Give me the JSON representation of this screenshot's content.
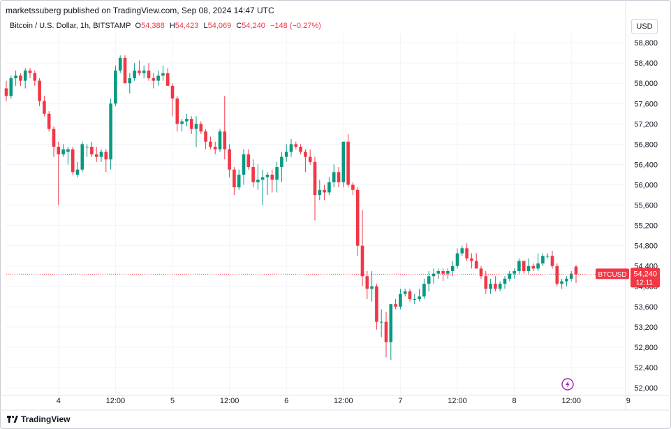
{
  "header": {
    "published": "marketssuberg published on TradingView.com, Sep 08, 2024 14:47 UTC"
  },
  "legend": {
    "symbol": "Bitcoin / U.S. Dollar, 1h, BITSTAMP",
    "o_label": "O",
    "o_value": "54,388",
    "h_label": "H",
    "h_value": "54,423",
    "l_label": "L",
    "l_value": "54,069",
    "c_label": "C",
    "c_value": "54,240",
    "change": "−148 (−0.27%)"
  },
  "currency_button": "USD",
  "price_tag": {
    "symbol": "BTCUSD",
    "price": "54,240",
    "countdown": "12:11"
  },
  "footer": {
    "brand": "TradingView"
  },
  "colors": {
    "up": "#089981",
    "down": "#f23645",
    "grid": "#f0f3fa",
    "text": "#131722",
    "alert": "#9c27b0"
  },
  "icons": {
    "alert": "lightning-icon",
    "logo": "tradingview-logo-icon"
  },
  "chart_data": {
    "type": "candlestick",
    "interval": "1h",
    "last_price": 54240,
    "y_range": [
      51850,
      58980
    ],
    "y_ticks": [
      "58,800",
      "58,400",
      "58,000",
      "57,600",
      "57,200",
      "56,800",
      "56,400",
      "56,000",
      "55,600",
      "55,200",
      "54,800",
      "54,400",
      "54,000",
      "53,600",
      "53,200",
      "52,800",
      "52,400",
      "52,000"
    ],
    "y_tick_values": [
      58800,
      58400,
      58000,
      57600,
      57200,
      56800,
      56400,
      56000,
      55600,
      55200,
      54800,
      54400,
      54000,
      53600,
      53200,
      52800,
      52400,
      52000
    ],
    "x_labels": [
      "4",
      "12:00",
      "5",
      "12:00",
      "6",
      "12:00",
      "7",
      "12:00",
      "8",
      "12:00",
      "9"
    ],
    "x_label_index": [
      11,
      23,
      35,
      47,
      59,
      71,
      83,
      95,
      107,
      119,
      131
    ],
    "first_index": 0,
    "candles": [
      [
        57900,
        58050,
        57650,
        57750
      ],
      [
        57750,
        58150,
        57700,
        58100
      ],
      [
        58100,
        58250,
        57950,
        58150
      ],
      [
        58150,
        58200,
        57950,
        58050
      ],
      [
        58050,
        58300,
        57900,
        58250
      ],
      [
        58250,
        58300,
        58100,
        58200
      ],
      [
        58200,
        58250,
        57950,
        58050
      ],
      [
        58050,
        58100,
        57550,
        57650
      ],
      [
        57650,
        57750,
        57350,
        57400
      ],
      [
        57400,
        57450,
        57050,
        57100
      ],
      [
        57100,
        57150,
        56550,
        56750
      ],
      [
        56750,
        56850,
        55600,
        56600
      ],
      [
        56600,
        56800,
        56550,
        56700
      ],
      [
        56650,
        56750,
        56400,
        56700
      ],
      [
        56700,
        56750,
        56200,
        56250
      ],
      [
        56200,
        56450,
        56150,
        56300
      ],
      [
        56300,
        56850,
        56250,
        56800
      ],
      [
        56750,
        56800,
        56550,
        56750
      ],
      [
        56750,
        56850,
        56550,
        56600
      ],
      [
        56600,
        56750,
        56450,
        56550
      ],
      [
        56550,
        56700,
        56450,
        56650
      ],
      [
        56650,
        56700,
        56250,
        56500
      ],
      [
        56500,
        57700,
        56300,
        57600
      ],
      [
        57600,
        58350,
        57550,
        58250
      ],
      [
        58250,
        58550,
        58200,
        58500
      ],
      [
        58500,
        58550,
        58000,
        58000
      ],
      [
        58000,
        58200,
        57800,
        58100
      ],
      [
        58100,
        58400,
        58050,
        58250
      ],
      [
        58250,
        58450,
        58150,
        58200
      ],
      [
        58200,
        58350,
        58100,
        58250
      ],
      [
        58250,
        58400,
        58050,
        58100
      ],
      [
        58100,
        58200,
        57900,
        58050
      ],
      [
        58050,
        58250,
        57950,
        58150
      ],
      [
        58150,
        58350,
        58050,
        58200
      ],
      [
        58200,
        58300,
        57950,
        57950
      ],
      [
        57950,
        58000,
        57350,
        57700
      ],
      [
        57700,
        57750,
        57050,
        57200
      ],
      [
        57200,
        57300,
        57050,
        57250
      ],
      [
        57250,
        57400,
        57150,
        57300
      ],
      [
        57300,
        57350,
        57000,
        57100
      ],
      [
        57100,
        57350,
        56750,
        57200
      ],
      [
        57200,
        57250,
        57000,
        57050
      ],
      [
        57050,
        57100,
        56700,
        56850
      ],
      [
        56850,
        56950,
        56700,
        56750
      ],
      [
        56750,
        56850,
        56600,
        56700
      ],
      [
        56700,
        57100,
        56650,
        57050
      ],
      [
        57050,
        57750,
        56500,
        56700
      ],
      [
        56700,
        56800,
        56150,
        56300
      ],
      [
        56300,
        56350,
        55800,
        55950
      ],
      [
        55950,
        56300,
        55900,
        56200
      ],
      [
        56200,
        56700,
        56000,
        56600
      ],
      [
        56600,
        56700,
        56300,
        56350
      ],
      [
        56350,
        56500,
        55950,
        56050
      ],
      [
        56050,
        56400,
        55900,
        56100
      ],
      [
        56100,
        56300,
        55600,
        56150
      ],
      [
        56150,
        56250,
        55800,
        56200
      ],
      [
        56200,
        56300,
        55850,
        56100
      ],
      [
        56100,
        56450,
        55850,
        56350
      ],
      [
        56350,
        56650,
        56050,
        56550
      ],
      [
        56550,
        56800,
        56450,
        56650
      ],
      [
        56650,
        56900,
        56550,
        56800
      ],
      [
        56800,
        56850,
        56700,
        56750
      ],
      [
        56750,
        56800,
        56600,
        56650
      ],
      [
        56650,
        56700,
        56250,
        56550
      ],
      [
        56550,
        56700,
        56400,
        56450
      ],
      [
        56450,
        56550,
        55300,
        55800
      ],
      [
        55800,
        56100,
        55700,
        55900
      ],
      [
        55900,
        56000,
        55700,
        55850
      ],
      [
        55850,
        56150,
        55800,
        56050
      ],
      [
        56050,
        56400,
        55950,
        56250
      ],
      [
        56250,
        56350,
        55950,
        56050
      ],
      [
        56050,
        56850,
        55950,
        56850
      ],
      [
        56850,
        57000,
        55950,
        56000
      ],
      [
        56000,
        56050,
        55800,
        55900
      ],
      [
        55900,
        55950,
        54600,
        54800
      ],
      [
        54800,
        55500,
        54000,
        54200
      ],
      [
        54200,
        54300,
        53750,
        53950
      ],
      [
        53950,
        54300,
        53700,
        54000
      ],
      [
        54000,
        54050,
        53150,
        53300
      ],
      [
        53300,
        53550,
        53000,
        53300
      ],
      [
        53300,
        53500,
        52600,
        52900
      ],
      [
        52900,
        53650,
        52550,
        53650
      ],
      [
        53650,
        53750,
        53550,
        53600
      ],
      [
        53600,
        53950,
        53550,
        53850
      ],
      [
        53850,
        53950,
        53800,
        53900
      ],
      [
        53900,
        53950,
        53700,
        53750
      ],
      [
        53750,
        53850,
        53650,
        53750
      ],
      [
        53750,
        53950,
        53700,
        53800
      ],
      [
        53800,
        54150,
        53750,
        54050
      ],
      [
        54050,
        54300,
        53900,
        54200
      ],
      [
        54200,
        54350,
        54050,
        54250
      ],
      [
        54250,
        54350,
        54150,
        54300
      ],
      [
        54300,
        54350,
        54100,
        54250
      ],
      [
        54250,
        54350,
        54150,
        54300
      ],
      [
        54300,
        54500,
        54200,
        54400
      ],
      [
        54400,
        54750,
        54350,
        54650
      ],
      [
        54650,
        54800,
        54600,
        54750
      ],
      [
        54750,
        54850,
        54500,
        54550
      ],
      [
        54550,
        54650,
        54350,
        54500
      ],
      [
        54500,
        54650,
        54350,
        54350
      ],
      [
        54350,
        54400,
        54150,
        54200
      ],
      [
        54200,
        54300,
        53850,
        53950
      ],
      [
        53950,
        54150,
        53850,
        54050
      ],
      [
        54050,
        54200,
        53900,
        53950
      ],
      [
        53950,
        54100,
        53900,
        54050
      ],
      [
        54050,
        54200,
        53950,
        54150
      ],
      [
        54150,
        54300,
        54100,
        54250
      ],
      [
        54250,
        54350,
        54150,
        54300
      ],
      [
        54300,
        54550,
        54250,
        54500
      ],
      [
        54500,
        54500,
        54250,
        54300
      ],
      [
        54300,
        54550,
        54250,
        54400
      ],
      [
        54400,
        54450,
        54300,
        54350
      ],
      [
        54350,
        54650,
        54300,
        54450
      ],
      [
        54450,
        54650,
        54400,
        54600
      ],
      [
        54600,
        54650,
        54550,
        54600
      ],
      [
        54600,
        54700,
        54350,
        54400
      ],
      [
        54400,
        54450,
        54000,
        54050
      ],
      [
        54050,
        54150,
        53950,
        54100
      ],
      [
        54100,
        54200,
        54000,
        54150
      ],
      [
        54150,
        54300,
        54100,
        54250
      ],
      [
        54388,
        54423,
        54069,
        54240
      ]
    ]
  }
}
